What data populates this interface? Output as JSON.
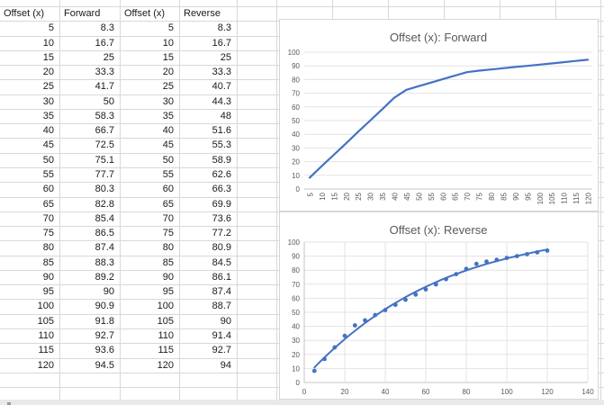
{
  "sheet": {
    "headers": [
      "Offset (x)",
      "Forward",
      "Offset (x)",
      "Reverse"
    ],
    "rows": [
      [
        "5",
        "8.3",
        "5",
        "8.3"
      ],
      [
        "10",
        "16.7",
        "10",
        "16.7"
      ],
      [
        "15",
        "25",
        "15",
        "25"
      ],
      [
        "20",
        "33.3",
        "20",
        "33.3"
      ],
      [
        "25",
        "41.7",
        "25",
        "40.7"
      ],
      [
        "30",
        "50",
        "30",
        "44.3"
      ],
      [
        "35",
        "58.3",
        "35",
        "48"
      ],
      [
        "40",
        "66.7",
        "40",
        "51.6"
      ],
      [
        "45",
        "72.5",
        "45",
        "55.3"
      ],
      [
        "50",
        "75.1",
        "50",
        "58.9"
      ],
      [
        "55",
        "77.7",
        "55",
        "62.6"
      ],
      [
        "60",
        "80.3",
        "60",
        "66.3"
      ],
      [
        "65",
        "82.8",
        "65",
        "69.9"
      ],
      [
        "70",
        "85.4",
        "70",
        "73.6"
      ],
      [
        "75",
        "86.5",
        "75",
        "77.2"
      ],
      [
        "80",
        "87.4",
        "80",
        "80.9"
      ],
      [
        "85",
        "88.3",
        "85",
        "84.5"
      ],
      [
        "90",
        "89.2",
        "90",
        "86.1"
      ],
      [
        "95",
        "90",
        "95",
        "87.4"
      ],
      [
        "100",
        "90.9",
        "100",
        "88.7"
      ],
      [
        "105",
        "91.8",
        "105",
        "90"
      ],
      [
        "110",
        "92.7",
        "110",
        "91.4"
      ],
      [
        "115",
        "93.6",
        "115",
        "92.7"
      ],
      [
        "120",
        "94.5",
        "120",
        "94"
      ]
    ]
  },
  "chart_data": [
    {
      "type": "line",
      "title": "Offset (x): Forward",
      "categories": [
        5,
        10,
        15,
        20,
        25,
        30,
        35,
        40,
        45,
        50,
        55,
        60,
        65,
        70,
        75,
        80,
        85,
        90,
        95,
        100,
        105,
        110,
        115,
        120
      ],
      "values": [
        8.3,
        16.7,
        25,
        33.3,
        41.7,
        50,
        58.3,
        66.7,
        72.5,
        75.1,
        77.7,
        80.3,
        82.8,
        85.4,
        86.5,
        87.4,
        88.3,
        89.2,
        90,
        90.9,
        91.8,
        92.7,
        93.6,
        94.5
      ],
      "xlabel": "",
      "ylabel": "",
      "ylim": [
        0,
        100
      ],
      "ytick_step": 10,
      "grid": "horizontal",
      "legend": "none",
      "series_color": "#4472C4",
      "x_label_rotation": -90
    },
    {
      "type": "scatter",
      "title": "Offset (x): Reverse",
      "x": [
        5,
        10,
        15,
        20,
        25,
        30,
        35,
        40,
        45,
        50,
        55,
        60,
        65,
        70,
        75,
        80,
        85,
        90,
        95,
        100,
        105,
        110,
        115,
        120
      ],
      "y": [
        8.3,
        16.7,
        25,
        33.3,
        40.7,
        44.3,
        48,
        51.6,
        55.3,
        58.9,
        62.6,
        66.3,
        69.9,
        73.6,
        77.2,
        80.9,
        84.5,
        86.1,
        87.4,
        88.7,
        90,
        91.4,
        92.7,
        94
      ],
      "xlabel": "",
      "ylabel": "",
      "xlim": [
        0,
        140
      ],
      "xtick_step": 20,
      "ylim": [
        0,
        100
      ],
      "ytick_step": 10,
      "grid": "both",
      "legend": "none",
      "trendline": "polynomial-3",
      "series_color": "#4472C4"
    }
  ]
}
